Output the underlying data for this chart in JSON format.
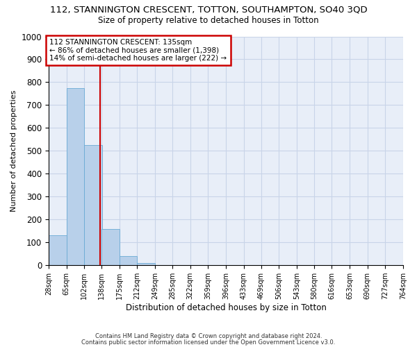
{
  "title1": "112, STANNINGTON CRESCENT, TOTTON, SOUTHAMPTON, SO40 3QD",
  "title2": "Size of property relative to detached houses in Totton",
  "xlabel": "Distribution of detached houses by size in Totton",
  "ylabel": "Number of detached properties",
  "bar_color": "#b8d0ea",
  "bar_edge_color": "#6aaad4",
  "bins": [
    28,
    65,
    102,
    138,
    175,
    212,
    249,
    285,
    322,
    359,
    396,
    433,
    469,
    506,
    543,
    580,
    616,
    653,
    690,
    727,
    764
  ],
  "counts": [
    130,
    775,
    525,
    157,
    40,
    10,
    0,
    0,
    0,
    0,
    0,
    0,
    0,
    0,
    0,
    0,
    0,
    0,
    0,
    0
  ],
  "property_size": 135,
  "vline_color": "#cc0000",
  "annotation_line1": "112 STANNINGTON CRESCENT: 135sqm",
  "annotation_line2": "← 86% of detached houses are smaller (1,398)",
  "annotation_line3": "14% of semi-detached houses are larger (222) →",
  "annotation_box_color": "#ffffff",
  "annotation_border_color": "#cc0000",
  "ylim": [
    0,
    1000
  ],
  "grid_color": "#c8d4e8",
  "bg_color": "#e8eef8",
  "footnote1": "Contains HM Land Registry data © Crown copyright and database right 2024.",
  "footnote2": "Contains public sector information licensed under the Open Government Licence v3.0.",
  "title1_fontsize": 9.5,
  "title2_fontsize": 8.5,
  "annotation_fontsize": 7.5,
  "tick_label_fontsize": 7,
  "ylabel_fontsize": 8,
  "xlabel_fontsize": 8.5,
  "footnote_fontsize": 6
}
